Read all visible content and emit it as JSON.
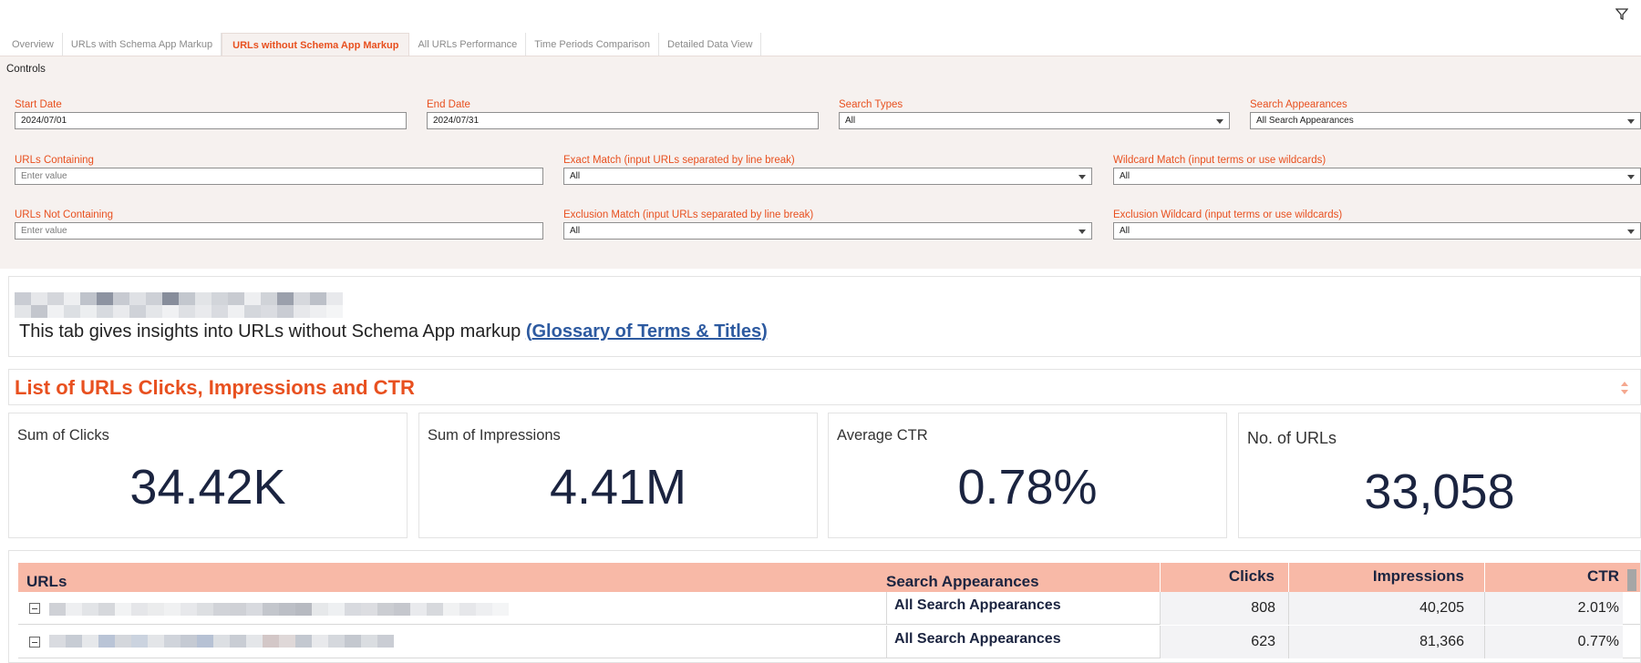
{
  "topbar": {
    "filter_icon": "filter-icon"
  },
  "tabs": [
    {
      "label": "Overview"
    },
    {
      "label": "URLs with Schema App Markup"
    },
    {
      "label": "URLs without Schema App Markup",
      "active": true
    },
    {
      "label": "All URLs Performance"
    },
    {
      "label": "Time Periods Comparison"
    },
    {
      "label": "Detailed Data View"
    }
  ],
  "controls": {
    "title": "Controls",
    "start_date": {
      "label": "Start Date",
      "value": "2024/07/01"
    },
    "end_date": {
      "label": "End Date",
      "value": "2024/07/31"
    },
    "search_types": {
      "label": "Search Types",
      "value": "All"
    },
    "search_appearances": {
      "label": "Search Appearances",
      "value": "All Search Appearances"
    },
    "urls_containing": {
      "label": "URLs Containing",
      "placeholder": "Enter value"
    },
    "exact_match": {
      "label": "Exact Match (input URLs separated by line break)",
      "value": "All"
    },
    "wildcard_match": {
      "label": "Wildcard Match (input terms or use wildcards)",
      "value": "All"
    },
    "urls_not_containing": {
      "label": "URLs Not Containing",
      "placeholder": "Enter value"
    },
    "exclusion_match": {
      "label": "Exclusion Match (input URLs separated by line break)",
      "value": "All"
    },
    "exclusion_wildcard": {
      "label": "Exclusion Wildcard (input terms or use wildcards)",
      "value": "All"
    }
  },
  "intro": {
    "text": "This tab gives insights into URLs without Schema App markup ",
    "link_open": "(",
    "link": "Glossary of Terms & Titles",
    "link_close": ")"
  },
  "section": {
    "title": "List of URLs Clicks, Impressions and CTR"
  },
  "kpis": [
    {
      "label": "Sum of Clicks",
      "value": "34.42K"
    },
    {
      "label": "Sum of Impressions",
      "value": "4.41M"
    },
    {
      "label": "Average CTR",
      "value": "0.78%"
    },
    {
      "label": "No. of URLs",
      "value": "33,058"
    }
  ],
  "table": {
    "headers": {
      "urls": "URLs",
      "search_appearances": "Search Appearances",
      "clicks": "Clicks",
      "impressions": "Impressions",
      "ctr": "CTR"
    },
    "rows": [
      {
        "search_appearance": "All Search Appearances",
        "clicks": "808",
        "impressions": "40,205",
        "ctr": "2.01%"
      },
      {
        "search_appearance": "All Search Appearances",
        "clicks": "623",
        "impressions": "81,366",
        "ctr": "0.77%"
      }
    ]
  },
  "colors": {
    "accent": "#e8501f",
    "header_bg": "#f8b9a7",
    "controls_bg": "#f6f1ef",
    "kpi_text": "#1b2440",
    "link": "#2d5aa0"
  }
}
